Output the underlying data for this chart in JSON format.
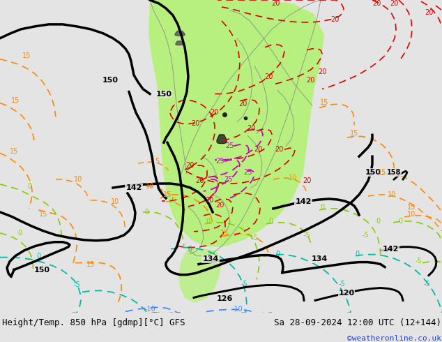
{
  "title_left": "Height/Temp. 850 hPa [gdmp][°C] GFS",
  "title_right": "Sa 28-09-2024 12:00 UTC (12+144)",
  "credit": "©weatheronline.co.uk",
  "bg_color": "#e4e4e4",
  "warm_region_color": "#b8f080",
  "figsize": [
    6.34,
    4.9
  ],
  "dpi": 100,
  "footer_fontsize": 9.0,
  "credit_fontsize": 8.0,
  "credit_color": "#2244cc"
}
